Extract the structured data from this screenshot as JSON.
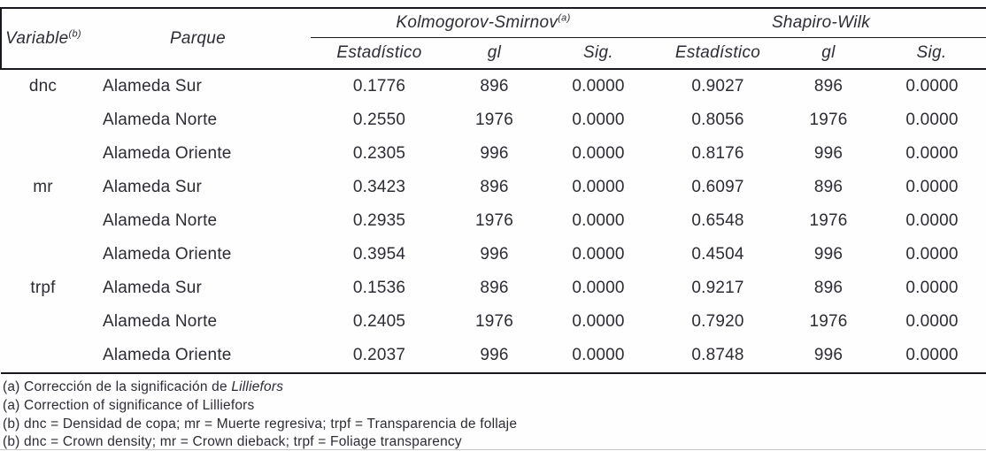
{
  "colors": {
    "text": "#2c2c34",
    "rule": "#17171d",
    "faint_rule": "#c9c9c9"
  },
  "table": {
    "header": {
      "variable": "Variable",
      "variable_sup": "(b)",
      "parque": "Parque",
      "groups": [
        {
          "label": "Kolmogorov-Smirnov",
          "sup": "(a)"
        },
        {
          "label": "Shapiro-Wilk",
          "sup": ""
        }
      ],
      "sub": [
        "Estadístico",
        "gl",
        "Sig.",
        "Estadístico",
        "gl",
        "Sig."
      ]
    },
    "rows": [
      {
        "variable": "dnc",
        "parque": "Alameda Sur",
        "values": [
          "0.1776",
          "896",
          "0.0000",
          "0.9027",
          "896",
          "0.0000"
        ]
      },
      {
        "variable": "",
        "parque": "Alameda Norte",
        "values": [
          "0.2550",
          "1976",
          "0.0000",
          "0.8056",
          "1976",
          "0.0000"
        ]
      },
      {
        "variable": "",
        "parque": "Alameda Oriente",
        "values": [
          "0.2305",
          "996",
          "0.0000",
          "0.8176",
          "996",
          "0.0000"
        ]
      },
      {
        "variable": "mr",
        "parque": "Alameda Sur",
        "values": [
          "0.3423",
          "896",
          "0.0000",
          "0.6097",
          "896",
          "0.0000"
        ]
      },
      {
        "variable": "",
        "parque": "Alameda Norte",
        "values": [
          "0.2935",
          "1976",
          "0.0000",
          "0.6548",
          "1976",
          "0.0000"
        ]
      },
      {
        "variable": "",
        "parque": "Alameda Oriente",
        "values": [
          "0.3954",
          "996",
          "0.0000",
          "0.4504",
          "996",
          "0.0000"
        ]
      },
      {
        "variable": "trpf",
        "parque": "Alameda Sur",
        "values": [
          "0.1536",
          "896",
          "0.0000",
          "0.9217",
          "896",
          "0.0000"
        ]
      },
      {
        "variable": "",
        "parque": "Alameda Norte",
        "values": [
          "0.2405",
          "1976",
          "0.0000",
          "0.7920",
          "1976",
          "0.0000"
        ]
      },
      {
        "variable": "",
        "parque": "Alameda Oriente",
        "values": [
          "0.2037",
          "996",
          "0.0000",
          "0.8748",
          "996",
          "0.0000"
        ]
      }
    ]
  },
  "footnotes": [
    {
      "text": "(a) Corrección de la significación de ",
      "italic": "Lilliefors"
    },
    {
      "text": "(a) Correction of significance of Lilliefors",
      "italic": ""
    },
    {
      "text": "(b) dnc = Densidad de copa; mr = Muerte regresiva; trpf = Transparencia de follaje",
      "italic": ""
    },
    {
      "text": "(b) dnc = Crown density; mr = Crown dieback; trpf = Foliage transparency",
      "italic": ""
    }
  ]
}
